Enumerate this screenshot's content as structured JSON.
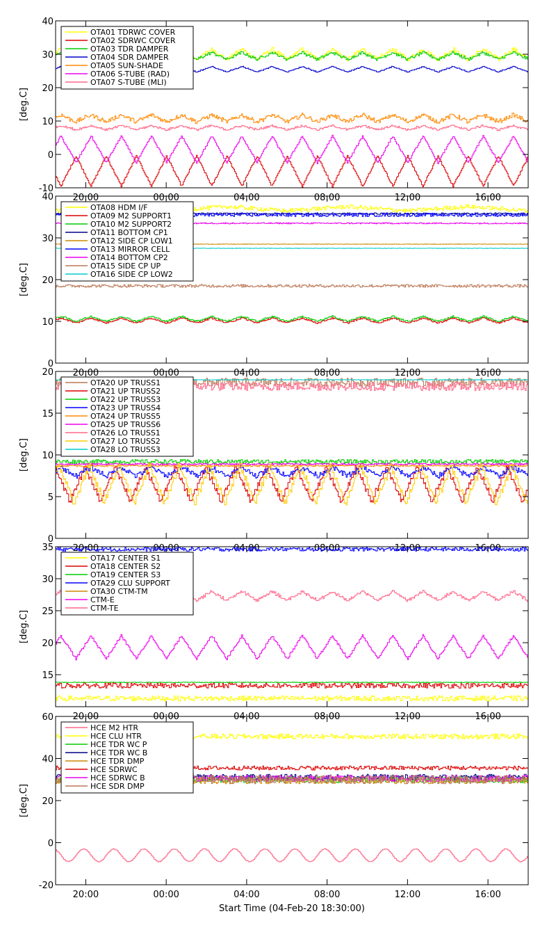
{
  "figure": {
    "xlabel": "Start Time (04-Feb-20 18:30:00)",
    "x_tick_labels": [
      "20:00",
      "00:00",
      "04:00",
      "08:00",
      "12:00",
      "16:00"
    ]
  },
  "chart_data": [
    {
      "type": "line",
      "ylabel": "[deg.C]",
      "ylim": [
        -10,
        40
      ],
      "yticks": [
        "-10",
        "0",
        "10",
        "20",
        "30",
        "40"
      ],
      "x_range_hours": [
        18.5,
        42.0
      ],
      "series": [
        {
          "name": "OTA01 TDRWC COVER",
          "color": "#ffff00",
          "kind": "step",
          "base": 30,
          "amp": 1.5,
          "period": 1.5,
          "noise": 0.6
        },
        {
          "name": "OTA02 SDRWC COVER",
          "color": "#dd0000",
          "kind": "tri",
          "base": -5,
          "amp": 4.5,
          "period": 1.5,
          "phase": 0.75,
          "noise": 0.3
        },
        {
          "name": "OTA03 TDR DAMPER",
          "color": "#00cc00",
          "kind": "step",
          "base": 29.5,
          "amp": 1,
          "period": 1.5,
          "noise": 0.4
        },
        {
          "name": "OTA04 SDR DAMPER",
          "color": "#0000cc",
          "kind": "step",
          "base": 25.5,
          "amp": 0.8,
          "period": 1.5,
          "noise": 0.1
        },
        {
          "name": "OTA05 SUN-SHADE",
          "color": "#ff8800",
          "kind": "step",
          "base": 10.8,
          "amp": 1,
          "period": 1.5,
          "noise": 0.6
        },
        {
          "name": "OTA06 S-TUBE (RAD)",
          "color": "#ee00ee",
          "kind": "tri",
          "base": 1.5,
          "amp": 4,
          "period": 1.5,
          "noise": 0.3
        },
        {
          "name": "OTA07 S-TUBE (MLI)",
          "color": "#ff6688",
          "kind": "step",
          "base": 8,
          "amp": 0.6,
          "period": 1.5,
          "noise": 0.3
        }
      ]
    },
    {
      "type": "line",
      "ylabel": "[deg.C]",
      "ylim": [
        0,
        40
      ],
      "yticks": [
        "0",
        "10",
        "20",
        "30",
        "40"
      ],
      "x_range_hours": [
        18.5,
        42.0
      ],
      "series": [
        {
          "name": "OTA08 HDM I/F",
          "color": "#ffff00",
          "kind": "step",
          "base": 37,
          "amp": 0.5,
          "period": 6,
          "noise": 0.5
        },
        {
          "name": "OTA09 M2 SUPPORT1",
          "color": "#dd0000",
          "kind": "tri",
          "base": 10.2,
          "amp": 0.6,
          "period": 1.5,
          "noise": 0.2
        },
        {
          "name": "OTA10 M2 SUPPORT2",
          "color": "#00cc00",
          "kind": "tri",
          "base": 10.6,
          "amp": 0.6,
          "period": 1.5,
          "noise": 0.2
        },
        {
          "name": "OTA11 BOTTOM CP1",
          "color": "#000088",
          "kind": "flat",
          "base": 35.8,
          "noise": 0.2
        },
        {
          "name": "OTA12 SIDE CP LOW1",
          "color": "#cc8800",
          "kind": "flat",
          "base": 28.5,
          "noise": 0.05
        },
        {
          "name": "OTA13 MIRROR CELL",
          "color": "#0000ff",
          "kind": "flat",
          "base": 35.5,
          "noise": 0.4
        },
        {
          "name": "OTA14 BOTTOM CP2",
          "color": "#ee00ee",
          "kind": "flat",
          "base": 33.5,
          "noise": 0.15
        },
        {
          "name": "OTA15 SIDE CP UP",
          "color": "#bb7755",
          "kind": "flat",
          "base": 18.5,
          "noise": 0.35
        },
        {
          "name": "OTA16 SIDE CP LOW2",
          "color": "#00cccc",
          "kind": "flat",
          "base": 27.5,
          "noise": 0.05
        }
      ]
    },
    {
      "type": "line",
      "ylabel": "[deg.C]",
      "ylim": [
        0,
        20
      ],
      "yticks": [
        "0",
        "5",
        "10",
        "15",
        "20"
      ],
      "x_range_hours": [
        18.5,
        42.0
      ],
      "series": [
        {
          "name": "OTA20 UP TRUSS1",
          "color": "#bb7755",
          "kind": "flat",
          "base": 18.7,
          "noise": 0.5
        },
        {
          "name": "OTA21 UP TRUSS2",
          "color": "#dd0000",
          "kind": "step",
          "base": 6.5,
          "amp": 2,
          "period": 1.5,
          "phase": 0.3,
          "noise": 0.2
        },
        {
          "name": "OTA22 UP TRUSS3",
          "color": "#00cc00",
          "kind": "flat",
          "base": 9.2,
          "noise": 0.25
        },
        {
          "name": "OTA23 UP TRUSS4",
          "color": "#0000ff",
          "kind": "step",
          "base": 8,
          "amp": 0.5,
          "period": 1.5,
          "noise": 0.3
        },
        {
          "name": "OTA24 UP TRUSS5",
          "color": "#ff8800",
          "kind": "flat",
          "base": 8.7,
          "noise": 0.1
        },
        {
          "name": "OTA25 UP TRUSS6",
          "color": "#ee00ee",
          "kind": "flat",
          "base": 8.9,
          "noise": 0.1
        },
        {
          "name": "OTA26 LO TRUSS1",
          "color": "#ff6688",
          "kind": "flat",
          "base": 18.2,
          "noise": 0.5
        },
        {
          "name": "OTA27 LO TRUSS2",
          "color": "#ffcc00",
          "kind": "step",
          "base": 6.5,
          "amp": 2.2,
          "period": 1.5,
          "phase": 0.1,
          "noise": 0.3
        },
        {
          "name": "OTA28 LO TRUSS3",
          "color": "#00cccc",
          "kind": "flat",
          "base": 19,
          "noise": 0.02
        }
      ]
    },
    {
      "type": "line",
      "ylabel": "[deg.C]",
      "ylim": [
        10,
        35
      ],
      "yticks": [
        "15",
        "20",
        "25",
        "30",
        "35"
      ],
      "x_range_hours": [
        18.5,
        42.0
      ],
      "series": [
        {
          "name": "OTA17 CENTER S1",
          "color": "#ffff00",
          "kind": "flat",
          "base": 11.3,
          "noise": 0.4
        },
        {
          "name": "OTA18 CENTER S2",
          "color": "#dd0000",
          "kind": "flat",
          "base": 13.3,
          "noise": 0.4
        },
        {
          "name": "OTA19 CENTER S3",
          "color": "#00cc00",
          "kind": "flat",
          "base": 13.8,
          "noise": 0.05
        },
        {
          "name": "OTA29 CLU SUPPORT",
          "color": "#0000ff",
          "kind": "flat",
          "base": 34.6,
          "noise": 0.3
        },
        {
          "name": "OTA30 CTM-TM",
          "color": "#cc8800",
          "kind": "flat",
          "base": 35.2,
          "noise": 0.05
        },
        {
          "name": "CTM-E",
          "color": "#ee00ee",
          "kind": "tri",
          "base": 19.3,
          "amp": 1.8,
          "period": 1.5,
          "noise": 0.2
        },
        {
          "name": "CTM-TE",
          "color": "#ff6688",
          "kind": "step",
          "base": 27.3,
          "amp": 0.7,
          "period": 1.5,
          "noise": 0.2
        }
      ]
    },
    {
      "type": "line",
      "ylabel": "[deg.C]",
      "ylim": [
        -20,
        60
      ],
      "yticks": [
        "-20",
        "0",
        "20",
        "40",
        "60"
      ],
      "x_range_hours": [
        18.5,
        42.0
      ],
      "series": [
        {
          "name": "HCE M2 HTR",
          "color": "#ff6688",
          "kind": "sine",
          "base": -6,
          "amp": 3,
          "period": 1.5,
          "noise": 0.2
        },
        {
          "name": "HCE CLU HTR",
          "color": "#ffff00",
          "kind": "flat",
          "base": 50.5,
          "noise": 1.2
        },
        {
          "name": "HCE TDR WC P",
          "color": "#00cc00",
          "kind": "flat",
          "base": 30,
          "noise": 1.5
        },
        {
          "name": "HCE TDR WC B",
          "color": "#000088",
          "kind": "flat",
          "base": 31,
          "noise": 1.5
        },
        {
          "name": "HCE TDR DMP",
          "color": "#cc8800",
          "kind": "flat",
          "base": 29.5,
          "noise": 1.5
        },
        {
          "name": "HCE SDRWC",
          "color": "#dd0000",
          "kind": "flat",
          "base": 35.5,
          "noise": 1.0
        },
        {
          "name": "HCE SDRWC B",
          "color": "#ee00ee",
          "kind": "flat",
          "base": 30.5,
          "noise": 1.5
        },
        {
          "name": "HCE SDR DMP",
          "color": "#bb7755",
          "kind": "flat",
          "base": 30,
          "noise": 2.0
        }
      ]
    }
  ]
}
